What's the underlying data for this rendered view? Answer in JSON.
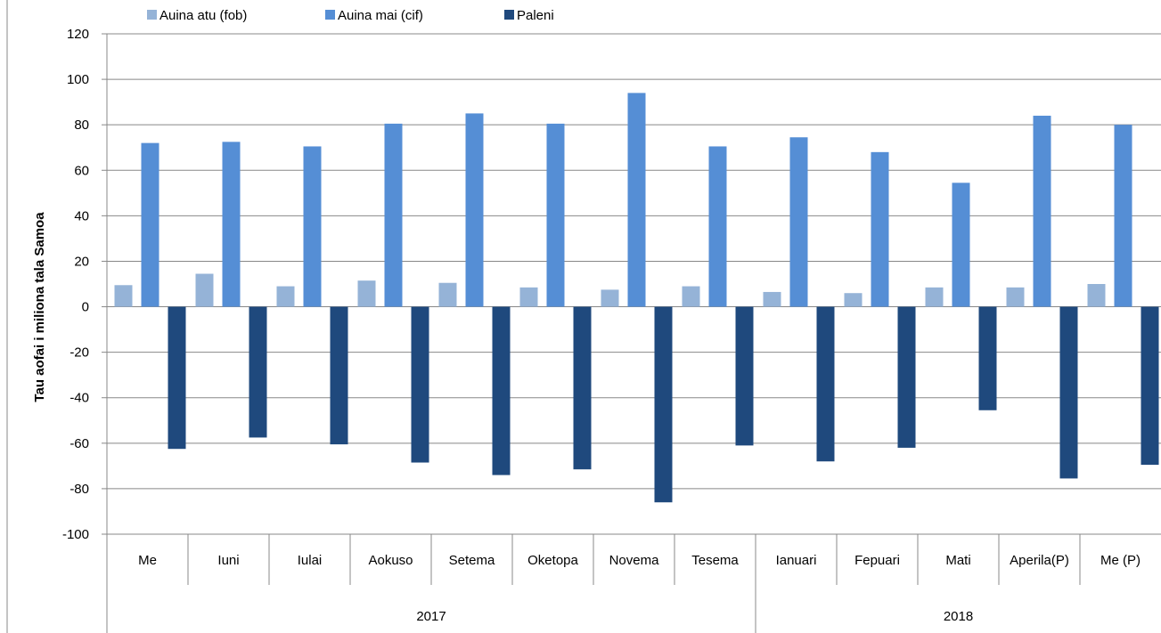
{
  "chart_data": {
    "type": "bar",
    "title": "",
    "xlabel": "",
    "ylabel": "Tau aofai i miliona tala Samoa",
    "ylim": [
      -100,
      120
    ],
    "yticks": [
      120,
      100,
      80,
      60,
      40,
      20,
      0,
      -20,
      -40,
      -60,
      -80,
      -100
    ],
    "grid": true,
    "legend_position": "top",
    "categories": [
      "Me",
      "Iuni",
      "Iulai",
      "Aokuso",
      "Setema",
      "Oketopa",
      "Novema",
      "Tesema",
      "Ianuari",
      "Fepuari",
      "Mati",
      "Aperila(P)",
      "Me (P)"
    ],
    "groups": [
      {
        "label": "2017",
        "count": 8
      },
      {
        "label": "2018",
        "count": 5
      }
    ],
    "series": [
      {
        "name": "Auina atu (fob)",
        "color": "#95b3d7",
        "values": [
          9.5,
          14.5,
          9,
          11.5,
          10.5,
          8.5,
          7.5,
          9,
          6.5,
          6,
          8.5,
          8.5,
          10
        ]
      },
      {
        "name": "Auina mai (cif)",
        "color": "#558ed5",
        "values": [
          72,
          72.5,
          70.5,
          80.5,
          85,
          80.5,
          94,
          70.5,
          74.5,
          68,
          54.5,
          84,
          80
        ]
      },
      {
        "name": "Paleni",
        "color": "#1f497d",
        "values": [
          -62.5,
          -57.5,
          -60.5,
          -68.5,
          -74,
          -71.5,
          -86,
          -61,
          -68,
          -62,
          -45.5,
          -75.5,
          -69.5
        ]
      }
    ]
  }
}
